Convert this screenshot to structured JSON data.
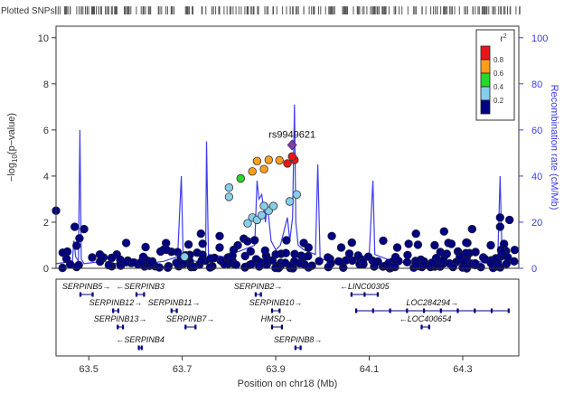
{
  "chart_data": {
    "type": "scatter",
    "subtype": "locuszoom",
    "plotted_label": "Plotted SNPs",
    "lead_snp": {
      "label": "rs9949621",
      "x": 63.935,
      "y": 5.35
    },
    "xlabel": "Position on chr18 (Mb)",
    "ylabel_left": "-log10(p-value)",
    "ylabel_left_main": "−log",
    "ylabel_left_sub": "10",
    "ylabel_left_tail": "(p−value)",
    "ylabel_right": "Recombination rate (cM/Mb)",
    "xlim": [
      63.43,
      64.42
    ],
    "ylim_left": [
      0,
      10.5
    ],
    "ylim_right": [
      0,
      105
    ],
    "xticks": [
      "63.5",
      "63.7",
      "63.9",
      "64.1",
      "64.3"
    ],
    "xtick_values": [
      63.5,
      63.7,
      63.9,
      64.1,
      64.3
    ],
    "yticks_left": [
      "0",
      "2",
      "4",
      "6",
      "8",
      "10"
    ],
    "yticks_right": [
      "0",
      "20",
      "40",
      "60",
      "80",
      "100"
    ],
    "legend": {
      "title": "r2",
      "title_main": "r",
      "title_sup": "2",
      "position": "top-right",
      "labels": [
        "0.8",
        "0.6",
        "0.4",
        "0.2"
      ],
      "colors": [
        "#e8161b",
        "#ff9e1b",
        "#27d72a",
        "#87ceeb",
        "#000080"
      ]
    },
    "colors": {
      "recomb": "#3c3cf0",
      "lead": "#7d3fa8",
      "axis": "#333333",
      "ld_none": "#000080"
    },
    "highlighted_points": [
      {
        "x": 63.935,
        "y": 4.85,
        "r2": "0.8-1.0"
      },
      {
        "x": 63.94,
        "y": 4.7,
        "r2": "0.8-1.0"
      },
      {
        "x": 63.925,
        "y": 4.55,
        "r2": "0.8-1.0"
      },
      {
        "x": 63.908,
        "y": 4.68,
        "r2": "0.6-0.8"
      },
      {
        "x": 63.885,
        "y": 4.7,
        "r2": "0.6-0.8"
      },
      {
        "x": 63.86,
        "y": 4.65,
        "r2": "0.6-0.8"
      },
      {
        "x": 63.85,
        "y": 4.2,
        "r2": "0.6-0.8"
      },
      {
        "x": 63.875,
        "y": 4.3,
        "r2": "0.6-0.8"
      },
      {
        "x": 63.825,
        "y": 3.9,
        "r2": "0.4-0.6"
      },
      {
        "x": 63.8,
        "y": 3.5,
        "r2": "0.2-0.4"
      },
      {
        "x": 63.8,
        "y": 3.1,
        "r2": "0.2-0.4"
      },
      {
        "x": 63.945,
        "y": 3.2,
        "r2": "0.2-0.4"
      },
      {
        "x": 63.93,
        "y": 2.9,
        "r2": "0.2-0.4"
      },
      {
        "x": 63.875,
        "y": 2.7,
        "r2": "0.2-0.4"
      },
      {
        "x": 63.895,
        "y": 2.7,
        "r2": "0.2-0.4"
      },
      {
        "x": 63.885,
        "y": 2.5,
        "r2": "0.2-0.4"
      },
      {
        "x": 63.87,
        "y": 2.3,
        "r2": "0.2-0.4"
      },
      {
        "x": 63.86,
        "y": 2.1,
        "r2": "0.2-0.4"
      },
      {
        "x": 63.85,
        "y": 2.2,
        "r2": "0.2-0.4"
      },
      {
        "x": 63.84,
        "y": 1.95,
        "r2": "0.2-0.4"
      },
      {
        "x": 63.705,
        "y": 0.5,
        "r2": "0.2-0.4"
      }
    ],
    "genes": [
      {
        "name": "SERPINB5",
        "start": 63.48,
        "end": 63.51,
        "row": 0,
        "dir": "+"
      },
      {
        "name": "SERPINB3",
        "start": 63.6,
        "end": 63.62,
        "row": 0,
        "dir": "-"
      },
      {
        "name": "SERPINB2",
        "start": 63.855,
        "end": 63.87,
        "row": 0,
        "dir": "+"
      },
      {
        "name": "LINC00305",
        "start": 64.06,
        "end": 64.12,
        "row": 0,
        "dir": "-"
      },
      {
        "name": "SERPINB12",
        "start": 63.55,
        "end": 63.565,
        "row": 1,
        "dir": "+"
      },
      {
        "name": "SERPINB11",
        "start": 63.675,
        "end": 63.69,
        "row": 1,
        "dir": "+"
      },
      {
        "name": "SERPINB10",
        "start": 63.89,
        "end": 63.91,
        "row": 1,
        "dir": "+"
      },
      {
        "name": "LOC284294",
        "start": 64.07,
        "end": 64.4,
        "row": 1,
        "dir": "+"
      },
      {
        "name": "SERPINB13",
        "start": 63.56,
        "end": 63.575,
        "row": 2,
        "dir": "+"
      },
      {
        "name": "SERPINB7",
        "start": 63.705,
        "end": 63.73,
        "row": 2,
        "dir": "+"
      },
      {
        "name": "HMSD",
        "start": 63.89,
        "end": 63.915,
        "row": 2,
        "dir": "+"
      },
      {
        "name": "LOC400654",
        "start": 64.21,
        "end": 64.23,
        "row": 2,
        "dir": "-"
      },
      {
        "name": "SERPINB4",
        "start": 63.605,
        "end": 63.615,
        "row": 3,
        "dir": "-"
      },
      {
        "name": "SERPINB8",
        "start": 63.94,
        "end": 63.955,
        "row": 3,
        "dir": "+"
      }
    ]
  }
}
